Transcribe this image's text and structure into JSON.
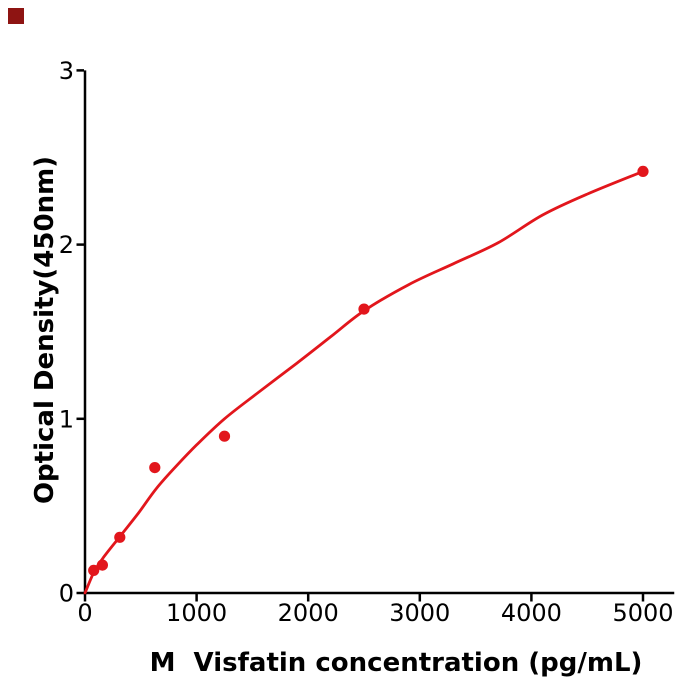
{
  "figure": {
    "background": "#ffffff"
  },
  "logo_mark": {
    "color": "#8e1412"
  },
  "chart_data": {
    "type": "scatter",
    "title": "",
    "xlabel": "M  Visfatin concentration (pg/mL)",
    "ylabel": "Optical Density(450nm)",
    "xlim": [
      0,
      5280
    ],
    "ylim": [
      0,
      3
    ],
    "x_ticks": [
      0,
      1000,
      2000,
      3000,
      4000,
      5000
    ],
    "y_ticks": [
      0,
      1,
      2,
      3
    ],
    "grid": false,
    "legend": "none",
    "axis_color": "#000000",
    "tick_label_color": "#000000",
    "series": [
      {
        "name": "standard-points",
        "type": "scatter",
        "marker": "circle",
        "color": "#e2161c",
        "points": [
          {
            "x": 78,
            "y": 0.13
          },
          {
            "x": 156,
            "y": 0.16
          },
          {
            "x": 312,
            "y": 0.32
          },
          {
            "x": 625,
            "y": 0.72
          },
          {
            "x": 1250,
            "y": 0.9
          },
          {
            "x": 2500,
            "y": 1.63
          },
          {
            "x": 5000,
            "y": 2.42
          }
        ]
      },
      {
        "name": "fit-curve",
        "type": "line",
        "color": "#e2161c",
        "points": [
          [
            0,
            0
          ],
          [
            80,
            0.12
          ],
          [
            160,
            0.2
          ],
          [
            320,
            0.33
          ],
          [
            480,
            0.46
          ],
          [
            640,
            0.6
          ],
          [
            820,
            0.73
          ],
          [
            1000,
            0.85
          ],
          [
            1250,
            1.0
          ],
          [
            1550,
            1.15
          ],
          [
            1900,
            1.32
          ],
          [
            2200,
            1.47
          ],
          [
            2500,
            1.62
          ],
          [
            2900,
            1.77
          ],
          [
            3300,
            1.89
          ],
          [
            3700,
            2.01
          ],
          [
            4100,
            2.17
          ],
          [
            4500,
            2.29
          ],
          [
            5000,
            2.42
          ]
        ]
      }
    ]
  }
}
